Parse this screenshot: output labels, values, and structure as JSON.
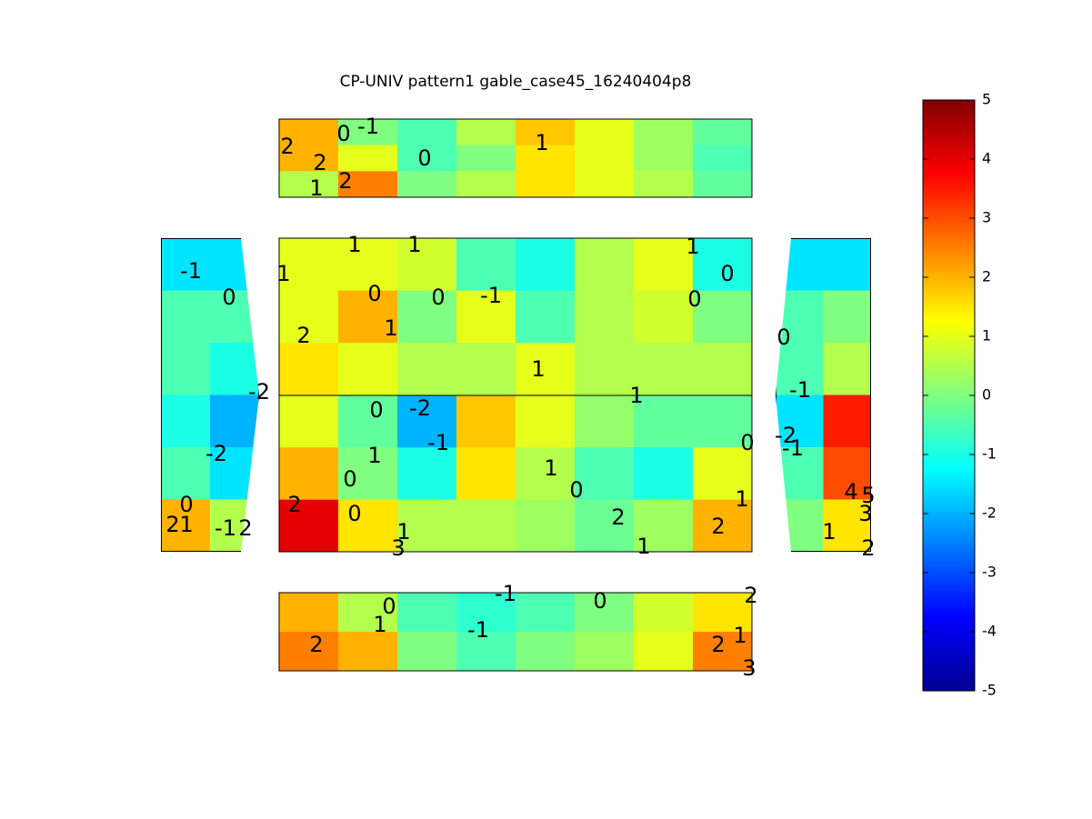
{
  "chart_data": {
    "type": "contour",
    "title": "CP-UNIV pattern1 gable_case45_16240404p8",
    "colormap": "jet",
    "clim": [
      -5,
      5
    ],
    "cticks": [
      -5,
      -4,
      -3,
      -2,
      -1,
      0,
      1,
      2,
      3,
      4,
      5
    ],
    "panels": [
      {
        "z": [
          [
            2,
            0,
            -0.5,
            0.5,
            1.8,
            1,
            0.3,
            -0.3
          ],
          [
            2,
            1,
            -0.5,
            0,
            1.5,
            1,
            0.3,
            -0.5
          ],
          [
            0.5,
            2.5,
            0,
            0.5,
            1.5,
            1,
            0.5,
            -0.3
          ]
        ],
        "labels": [
          2,
          2,
          1,
          2,
          0,
          -1,
          0,
          1
        ]
      },
      {
        "z": [
          [
            -1.5,
            -1.5
          ],
          [
            -0.5,
            -0.5
          ],
          [
            -0.5,
            -1
          ],
          [
            -1,
            -2
          ],
          [
            -0.5,
            -1.5
          ],
          [
            2,
            0.5
          ]
        ],
        "labels": [
          -1,
          0,
          -2,
          -2,
          0,
          2,
          1,
          -1,
          2
        ]
      },
      {
        "z": [
          [
            1,
            1,
            0.8,
            -0.5,
            -1,
            0.5,
            1,
            -1
          ],
          [
            1,
            2,
            0,
            1,
            -0.5,
            0.5,
            0.8,
            0
          ],
          [
            1.5,
            1,
            0.5,
            0.5,
            1,
            0.5,
            0.5,
            0.5
          ]
        ],
        "labels": [
          1,
          1,
          1,
          0,
          0,
          -1,
          2,
          1,
          1,
          0,
          0,
          1
        ]
      },
      {
        "z": [
          [
            1,
            -0.3,
            -2,
            1.8,
            1,
            0.2,
            -0.3,
            -0.3
          ],
          [
            2,
            0,
            -1,
            1.5,
            0.5,
            -0.5,
            -1,
            1
          ],
          [
            4,
            1.5,
            0.5,
            0.5,
            0.3,
            -0.2,
            0.3,
            2
          ]
        ],
        "labels": [
          0,
          -2,
          1,
          1,
          -1,
          1,
          0,
          0,
          0,
          2,
          1,
          2,
          3,
          1,
          2,
          0,
          1
        ]
      },
      {
        "z": [
          [
            -1.5,
            -1.5
          ],
          [
            -0.5,
            0
          ],
          [
            -0.5,
            0.5
          ],
          [
            -1.5,
            3.5
          ],
          [
            -0.5,
            3
          ],
          [
            0,
            1.5
          ]
        ],
        "labels": [
          0,
          -1,
          -2,
          -1,
          4,
          5,
          3,
          1,
          2
        ]
      },
      {
        "z": [
          [
            2,
            0.5,
            -0.5,
            -0.8,
            -0.5,
            0,
            0.8,
            1.5
          ],
          [
            2.5,
            2,
            0,
            -0.5,
            0,
            0.3,
            1,
            2.5
          ]
        ],
        "labels": [
          0,
          1,
          2,
          -1,
          -1,
          0,
          2,
          1,
          2,
          3
        ]
      }
    ]
  }
}
